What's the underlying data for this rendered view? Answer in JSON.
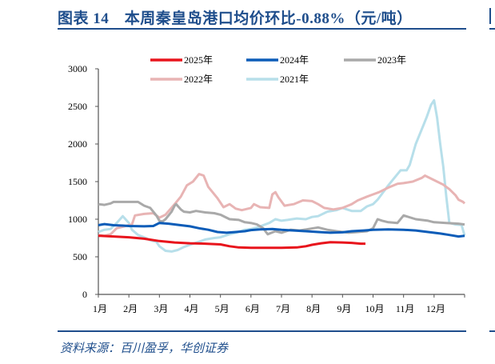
{
  "header": {
    "title": "图表 14　本周秦皇岛港口均价环比-0.88%（元/吨）"
  },
  "footer": {
    "source": "资料来源：百川盈孚，华创证券"
  },
  "chart_data": {
    "type": "line",
    "title": "本周秦皇岛港口均价环比-0.88%（元/吨）",
    "xlabel": "",
    "ylabel": "元/吨",
    "ylim": [
      0,
      3000
    ],
    "yticks": [
      0,
      500,
      1000,
      1500,
      2000,
      2500,
      3000
    ],
    "xticks": [
      "1月",
      "2月",
      "3月",
      "4月",
      "5月",
      "6月",
      "7月",
      "8月",
      "9月",
      "10月",
      "11月",
      "12月"
    ],
    "grid": false,
    "legend_position": "top",
    "x_unit": "month offset from Jan 1 (0-12)",
    "series": [
      {
        "name": "2025年",
        "color": "#e8141c",
        "width": 3,
        "points": [
          [
            0,
            780
          ],
          [
            0.5,
            770
          ],
          [
            1,
            760
          ],
          [
            1.5,
            740
          ],
          [
            2,
            710
          ],
          [
            2.5,
            690
          ],
          [
            3,
            680
          ],
          [
            3.5,
            675
          ],
          [
            4,
            665
          ],
          [
            4.3,
            640
          ],
          [
            4.6,
            625
          ],
          [
            5,
            620
          ],
          [
            5.5,
            620
          ],
          [
            6,
            620
          ],
          [
            6.5,
            625
          ],
          [
            6.8,
            640
          ],
          [
            7,
            660
          ],
          [
            7.3,
            680
          ],
          [
            7.6,
            695
          ],
          [
            8,
            690
          ],
          [
            8.3,
            685
          ],
          [
            8.6,
            675
          ],
          [
            8.75,
            675
          ]
        ]
      },
      {
        "name": "2024年",
        "color": "#0b5cb8",
        "width": 3,
        "points": [
          [
            0,
            920
          ],
          [
            0.2,
            935
          ],
          [
            0.5,
            920
          ],
          [
            0.8,
            915
          ],
          [
            1,
            910
          ],
          [
            1.5,
            905
          ],
          [
            1.8,
            910
          ],
          [
            2,
            950
          ],
          [
            2.3,
            940
          ],
          [
            2.7,
            920
          ],
          [
            3,
            905
          ],
          [
            3.3,
            880
          ],
          [
            3.6,
            860
          ],
          [
            3.9,
            830
          ],
          [
            4.2,
            820
          ],
          [
            4.5,
            830
          ],
          [
            4.8,
            840
          ],
          [
            5,
            855
          ],
          [
            5.3,
            865
          ],
          [
            5.7,
            870
          ],
          [
            6,
            860
          ],
          [
            6.4,
            850
          ],
          [
            6.8,
            840
          ],
          [
            7.2,
            830
          ],
          [
            7.6,
            820
          ],
          [
            8,
            825
          ],
          [
            8.3,
            840
          ],
          [
            8.7,
            850
          ],
          [
            9,
            860
          ],
          [
            9.5,
            865
          ],
          [
            10,
            860
          ],
          [
            10.4,
            850
          ],
          [
            10.8,
            830
          ],
          [
            11.2,
            810
          ],
          [
            11.5,
            790
          ],
          [
            11.8,
            770
          ],
          [
            12,
            780
          ]
        ]
      },
      {
        "name": "2023年",
        "color": "#a9a9a9",
        "width": 3,
        "points": [
          [
            0,
            1200
          ],
          [
            0.2,
            1190
          ],
          [
            0.4,
            1210
          ],
          [
            0.5,
            1230
          ],
          [
            1,
            1230
          ],
          [
            1.3,
            1230
          ],
          [
            1.5,
            1180
          ],
          [
            1.7,
            1150
          ],
          [
            1.9,
            1050
          ],
          [
            2,
            980
          ],
          [
            2.1,
            970
          ],
          [
            2.2,
            1000
          ],
          [
            2.4,
            1100
          ],
          [
            2.5,
            1180
          ],
          [
            2.55,
            1200
          ],
          [
            2.7,
            1130
          ],
          [
            2.8,
            1100
          ],
          [
            3,
            1090
          ],
          [
            3.2,
            1110
          ],
          [
            3.5,
            1090
          ],
          [
            3.8,
            1080
          ],
          [
            4,
            1060
          ],
          [
            4.3,
            1000
          ],
          [
            4.6,
            990
          ],
          [
            4.8,
            960
          ],
          [
            5,
            950
          ],
          [
            5.2,
            930
          ],
          [
            5.4,
            880
          ],
          [
            5.55,
            800
          ],
          [
            5.8,
            840
          ],
          [
            6,
            820
          ],
          [
            6.3,
            860
          ],
          [
            6.6,
            850
          ],
          [
            6.9,
            870
          ],
          [
            7.2,
            890
          ],
          [
            7.5,
            860
          ],
          [
            7.8,
            840
          ],
          [
            8.2,
            820
          ],
          [
            8.5,
            830
          ],
          [
            8.8,
            840
          ],
          [
            9,
            880
          ],
          [
            9.15,
            1000
          ],
          [
            9.3,
            980
          ],
          [
            9.5,
            960
          ],
          [
            9.8,
            950
          ],
          [
            10,
            1050
          ],
          [
            10.4,
            1000
          ],
          [
            10.8,
            980
          ],
          [
            11,
            960
          ],
          [
            11.4,
            950
          ],
          [
            11.8,
            940
          ],
          [
            12,
            930
          ]
        ]
      },
      {
        "name": "2022年",
        "color": "#e8b4b4",
        "width": 3,
        "points": [
          [
            0,
            790
          ],
          [
            0.2,
            780
          ],
          [
            0.4,
            800
          ],
          [
            0.6,
            880
          ],
          [
            0.8,
            900
          ],
          [
            1,
            920
          ],
          [
            1.1,
            930
          ],
          [
            1.2,
            1050
          ],
          [
            1.5,
            1070
          ],
          [
            1.8,
            1080
          ],
          [
            2,
            1020
          ],
          [
            2.2,
            1060
          ],
          [
            2.5,
            1200
          ],
          [
            2.7,
            1300
          ],
          [
            2.9,
            1450
          ],
          [
            3.1,
            1500
          ],
          [
            3.3,
            1600
          ],
          [
            3.45,
            1580
          ],
          [
            3.6,
            1430
          ],
          [
            3.9,
            1280
          ],
          [
            4.1,
            1160
          ],
          [
            4.3,
            1200
          ],
          [
            4.5,
            1140
          ],
          [
            4.7,
            1120
          ],
          [
            5,
            1150
          ],
          [
            5.1,
            1200
          ],
          [
            5.3,
            1160
          ],
          [
            5.6,
            1150
          ],
          [
            5.7,
            1330
          ],
          [
            5.8,
            1360
          ],
          [
            5.9,
            1290
          ],
          [
            6.1,
            1180
          ],
          [
            6.4,
            1200
          ],
          [
            6.7,
            1250
          ],
          [
            7,
            1240
          ],
          [
            7.2,
            1200
          ],
          [
            7.4,
            1150
          ],
          [
            7.7,
            1130
          ],
          [
            8,
            1150
          ],
          [
            8.3,
            1200
          ],
          [
            8.5,
            1250
          ],
          [
            8.8,
            1300
          ],
          [
            9,
            1330
          ],
          [
            9.2,
            1360
          ],
          [
            9.5,
            1420
          ],
          [
            9.8,
            1470
          ],
          [
            10,
            1480
          ],
          [
            10.3,
            1500
          ],
          [
            10.6,
            1550
          ],
          [
            10.7,
            1580
          ],
          [
            11,
            1520
          ],
          [
            11.3,
            1460
          ],
          [
            11.5,
            1400
          ],
          [
            11.7,
            1320
          ],
          [
            11.8,
            1260
          ],
          [
            11.95,
            1230
          ],
          [
            12,
            1210
          ]
        ]
      },
      {
        "name": "2021年",
        "color": "#b7dfea",
        "width": 3,
        "points": [
          [
            0,
            830
          ],
          [
            0.2,
            860
          ],
          [
            0.4,
            870
          ],
          [
            0.6,
            950
          ],
          [
            0.8,
            1040
          ],
          [
            1,
            950
          ],
          [
            1.1,
            860
          ],
          [
            1.3,
            790
          ],
          [
            1.5,
            760
          ],
          [
            1.7,
            720
          ],
          [
            1.9,
            700
          ],
          [
            2,
            640
          ],
          [
            2.2,
            580
          ],
          [
            2.4,
            570
          ],
          [
            2.6,
            590
          ],
          [
            2.8,
            630
          ],
          [
            3,
            660
          ],
          [
            3.3,
            700
          ],
          [
            3.5,
            730
          ],
          [
            3.8,
            750
          ],
          [
            4,
            760
          ],
          [
            4.3,
            800
          ],
          [
            4.5,
            820
          ],
          [
            4.8,
            860
          ],
          [
            5,
            870
          ],
          [
            5.2,
            890
          ],
          [
            5.4,
            920
          ],
          [
            5.6,
            950
          ],
          [
            5.8,
            1000
          ],
          [
            6,
            980
          ],
          [
            6.2,
            990
          ],
          [
            6.5,
            1010
          ],
          [
            6.8,
            1000
          ],
          [
            7,
            1030
          ],
          [
            7.2,
            1040
          ],
          [
            7.5,
            1100
          ],
          [
            7.8,
            1120
          ],
          [
            8,
            1150
          ],
          [
            8.3,
            1110
          ],
          [
            8.6,
            1110
          ],
          [
            8.8,
            1170
          ],
          [
            9,
            1200
          ],
          [
            9.15,
            1260
          ],
          [
            9.3,
            1340
          ],
          [
            9.5,
            1450
          ],
          [
            9.7,
            1550
          ],
          [
            9.9,
            1650
          ],
          [
            10.1,
            1650
          ],
          [
            10.2,
            1720
          ],
          [
            10.4,
            2000
          ],
          [
            10.6,
            2200
          ],
          [
            10.75,
            2350
          ],
          [
            10.9,
            2520
          ],
          [
            11,
            2580
          ],
          [
            11.1,
            2350
          ],
          [
            11.2,
            2000
          ],
          [
            11.3,
            1700
          ],
          [
            11.4,
            1300
          ],
          [
            11.5,
            950
          ],
          [
            11.7,
            930
          ],
          [
            11.9,
            925
          ],
          [
            12,
            780
          ]
        ]
      }
    ]
  },
  "legend": [
    {
      "label": "2025年",
      "color": "#e8141c"
    },
    {
      "label": "2024年",
      "color": "#0b5cb8"
    },
    {
      "label": "2023年",
      "color": "#a9a9a9"
    },
    {
      "label": "2022年",
      "color": "#e8b4b4"
    },
    {
      "label": "2021年",
      "color": "#b7dfea"
    }
  ]
}
